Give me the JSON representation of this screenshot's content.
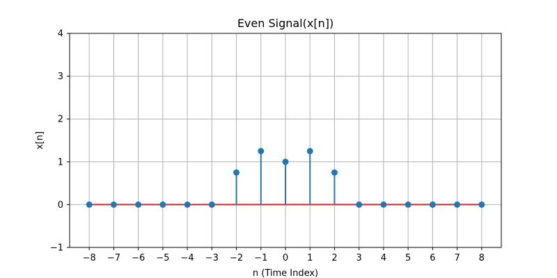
{
  "chart_data": {
    "type": "stem",
    "title": "Even Signal(x[n])",
    "xlabel": "n (Time Index)",
    "ylabel": "x[n]",
    "x": [
      -8,
      -7,
      -6,
      -5,
      -4,
      -3,
      -2,
      -1,
      0,
      1,
      2,
      3,
      4,
      5,
      6,
      7,
      8
    ],
    "y": [
      0,
      0,
      0,
      0,
      0,
      0,
      0.75,
      1.25,
      1,
      1.25,
      0.75,
      0,
      0,
      0,
      0,
      0,
      0
    ],
    "xticks": [
      -8,
      -7,
      -6,
      -5,
      -4,
      -3,
      -2,
      -1,
      0,
      1,
      2,
      3,
      4,
      5,
      6,
      7,
      8
    ],
    "xtick_labels": [
      "−8",
      "−7",
      "−6",
      "−5",
      "−4",
      "−3",
      "−2",
      "−1",
      "0",
      "1",
      "2",
      "3",
      "4",
      "5",
      "6",
      "7",
      "8"
    ],
    "yticks": [
      -1,
      0,
      1,
      2,
      3,
      4
    ],
    "ytick_labels": [
      "−1",
      "0",
      "1",
      "2",
      "3",
      "4"
    ],
    "xlim": [
      -8.8,
      8.8
    ],
    "ylim": [
      -1,
      4
    ],
    "grid": true,
    "colors": {
      "stem": "#1f77b4",
      "marker": "#1f77b4",
      "baseline": "#d62728",
      "grid": "#b0b0b0",
      "axes": "#000000"
    }
  }
}
